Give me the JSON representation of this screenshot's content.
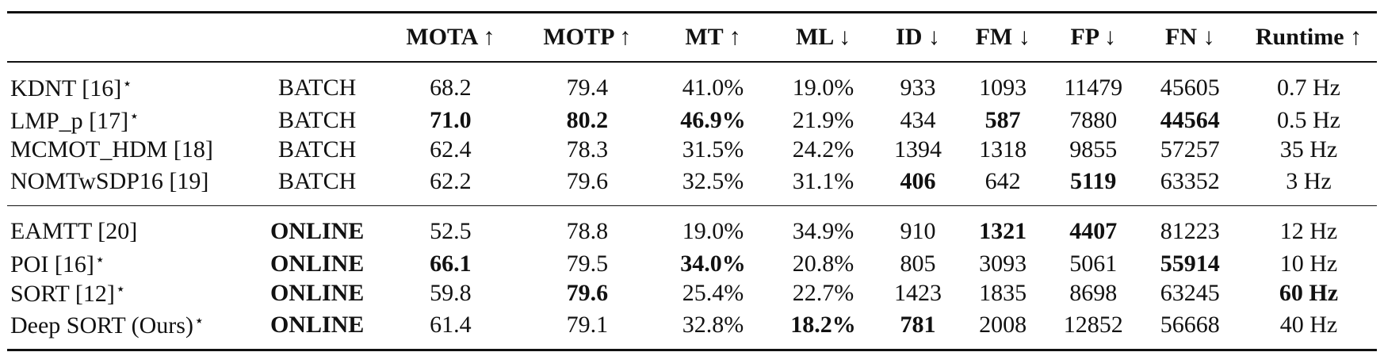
{
  "chart_data": {
    "type": "table",
    "columns": [
      "",
      "",
      "MOTA ↑",
      "MOTP ↑",
      "MT ↑",
      "ML ↓",
      "ID ↓",
      "FM ↓",
      "FP ↓",
      "FN ↓",
      "Runtime ↑"
    ],
    "rows": [
      {
        "method": "KDNT [16]",
        "star": "⋆",
        "mode": "BATCH",
        "mota": "68.2",
        "motp": "79.4",
        "mt": "41.0%",
        "ml": "19.0%",
        "id": "933",
        "fm": "1093",
        "fp": "11479",
        "fn": "45605",
        "runtime": "0.7 Hz",
        "bold": []
      },
      {
        "method": "LMP_p [17]",
        "star": "⋆",
        "mode": "BATCH",
        "mota": "71.0",
        "motp": "80.2",
        "mt": "46.9%",
        "ml": "21.9%",
        "id": "434",
        "fm": "587",
        "fp": "7880",
        "fn": "44564",
        "runtime": "0.5 Hz",
        "bold": [
          "mota",
          "motp",
          "mt",
          "fm",
          "fn"
        ]
      },
      {
        "method": "MCMOT_HDM [18]",
        "star": "",
        "mode": "BATCH",
        "mota": "62.4",
        "motp": "78.3",
        "mt": "31.5%",
        "ml": "24.2%",
        "id": "1394",
        "fm": "1318",
        "fp": "9855",
        "fn": "57257",
        "runtime": "35 Hz",
        "bold": []
      },
      {
        "method": "NOMTwSDP16 [19]",
        "star": "",
        "mode": "BATCH",
        "mota": "62.2",
        "motp": "79.6",
        "mt": "32.5%",
        "ml": "31.1%",
        "id": "406",
        "fm": "642",
        "fp": "5119",
        "fn": "63352",
        "runtime": "3 Hz",
        "bold": [
          "id",
          "fp"
        ]
      },
      {
        "method": "EAMTT [20]",
        "star": "",
        "mode": "ONLINE",
        "mota": "52.5",
        "motp": "78.8",
        "mt": "19.0%",
        "ml": "34.9%",
        "id": "910",
        "fm": "1321",
        "fp": "4407",
        "fn": "81223",
        "runtime": "12 Hz",
        "bold": [
          "mode",
          "fm",
          "fp"
        ]
      },
      {
        "method": "POI [16]",
        "star": "⋆",
        "mode": "ONLINE",
        "mota": "66.1",
        "motp": "79.5",
        "mt": "34.0%",
        "ml": "20.8%",
        "id": "805",
        "fm": "3093",
        "fp": "5061",
        "fn": "55914",
        "runtime": "10 Hz",
        "bold": [
          "mode",
          "mota",
          "mt",
          "fn"
        ]
      },
      {
        "method": "SORT [12]",
        "star": "⋆",
        "mode": "ONLINE",
        "mota": "59.8",
        "motp": "79.6",
        "mt": "25.4%",
        "ml": "22.7%",
        "id": "1423",
        "fm": "1835",
        "fp": "8698",
        "fn": "63245",
        "runtime": "60 Hz",
        "bold": [
          "mode",
          "motp",
          "runtime"
        ]
      },
      {
        "method": "Deep SORT (Ours)",
        "star": "⋆",
        "mode": "ONLINE",
        "mota": "61.4",
        "motp": "79.1",
        "mt": "32.8%",
        "ml": "18.2%",
        "id": "781",
        "fm": "2008",
        "fp": "12852",
        "fn": "56668",
        "runtime": "40 Hz",
        "bold": [
          "mode",
          "ml",
          "id"
        ]
      }
    ]
  }
}
